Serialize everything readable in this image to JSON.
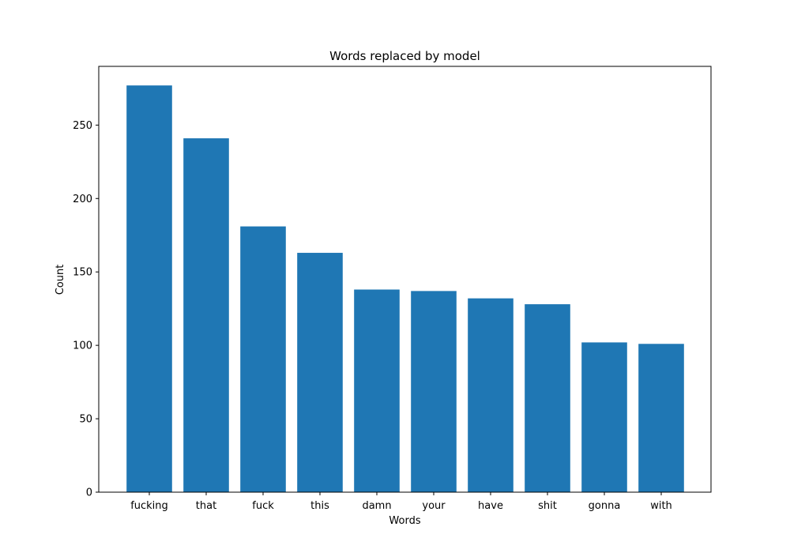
{
  "chart_data": {
    "type": "bar",
    "title": "Words replaced by model",
    "xlabel": "Words",
    "ylabel": "Count",
    "categories": [
      "fucking",
      "that",
      "fuck",
      "this",
      "damn",
      "your",
      "have",
      "shit",
      "gonna",
      "with"
    ],
    "values": [
      277,
      241,
      181,
      163,
      138,
      137,
      132,
      128,
      102,
      101
    ],
    "ylim": [
      0,
      290
    ],
    "yticks": [
      "0",
      "50",
      "100",
      "150",
      "200",
      "250"
    ],
    "bar_color": "#1f77b4",
    "grid": false,
    "legend": false
  }
}
